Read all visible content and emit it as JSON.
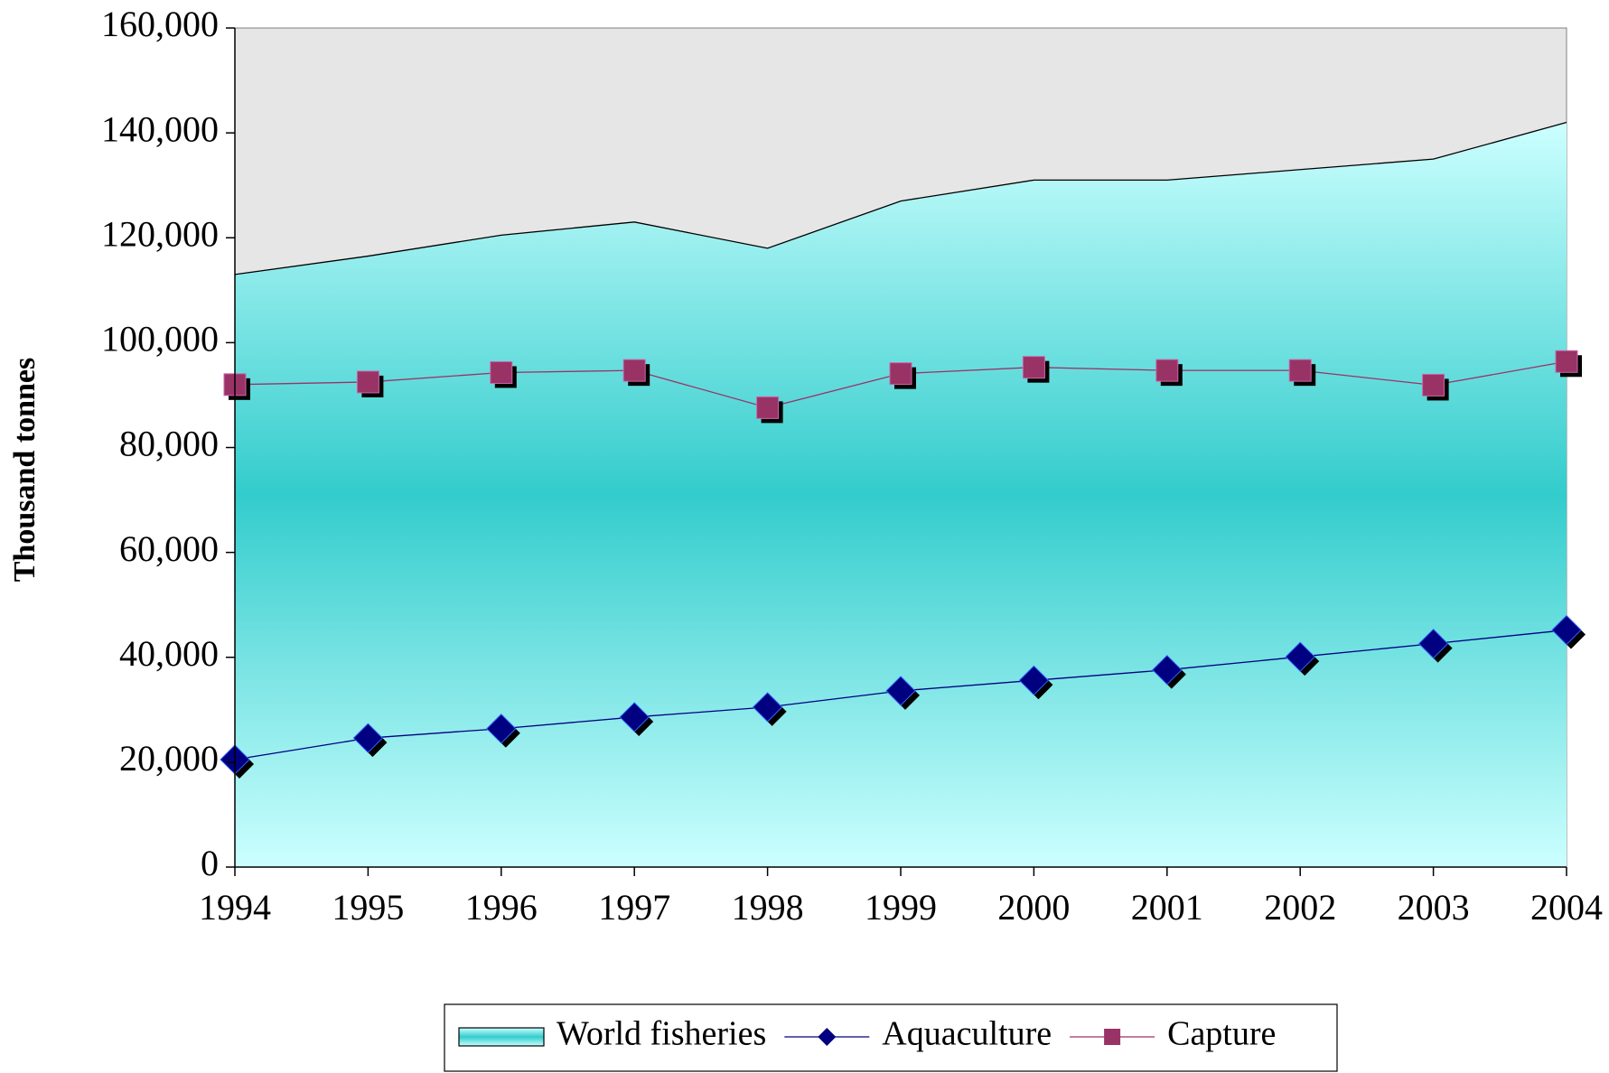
{
  "chart_data": {
    "type": "line",
    "y_axis_label": "Thousand tonnes",
    "x": [
      1994,
      1995,
      1996,
      1997,
      1998,
      1999,
      2000,
      2001,
      2002,
      2003,
      2004
    ],
    "xlim": [
      1994,
      2004
    ],
    "xticks": [
      1994,
      1995,
      1996,
      1997,
      1998,
      1999,
      2000,
      2001,
      2002,
      2003,
      2004
    ],
    "ylim": [
      0,
      160000
    ],
    "yticks": [
      0,
      {
        "value": 20000,
        "label": "20,000"
      },
      {
        "value": 40000,
        "label": "40,000"
      },
      {
        "value": 60000,
        "label": "60,000"
      },
      {
        "value": 80000,
        "label": "80,000"
      },
      {
        "value": 100000,
        "label": "100,000"
      },
      {
        "value": 120000,
        "label": "120,000"
      },
      {
        "value": 140000,
        "label": "140,000"
      },
      {
        "value": 160000,
        "label": "160,000"
      }
    ],
    "plot_background": "#e6e6e6",
    "legend": "bottom",
    "series": [
      {
        "name": "World fisheries",
        "kind": "area",
        "color": "#33cccc",
        "values": [
          113000,
          116500,
          120500,
          123000,
          118000,
          127000,
          131000,
          131000,
          133000,
          135000,
          142000
        ]
      },
      {
        "name": "Aquaculture",
        "kind": "line",
        "marker": "diamond",
        "color": "#000080",
        "values": [
          20500,
          24600,
          26400,
          28600,
          30500,
          33600,
          35600,
          37600,
          40100,
          42600,
          45200
        ]
      },
      {
        "name": "Capture",
        "kind": "line",
        "marker": "square",
        "color": "#993366",
        "values": [
          92000,
          92500,
          94300,
          94700,
          87600,
          94100,
          95300,
          94700,
          94700,
          91900,
          96400
        ]
      }
    ]
  }
}
